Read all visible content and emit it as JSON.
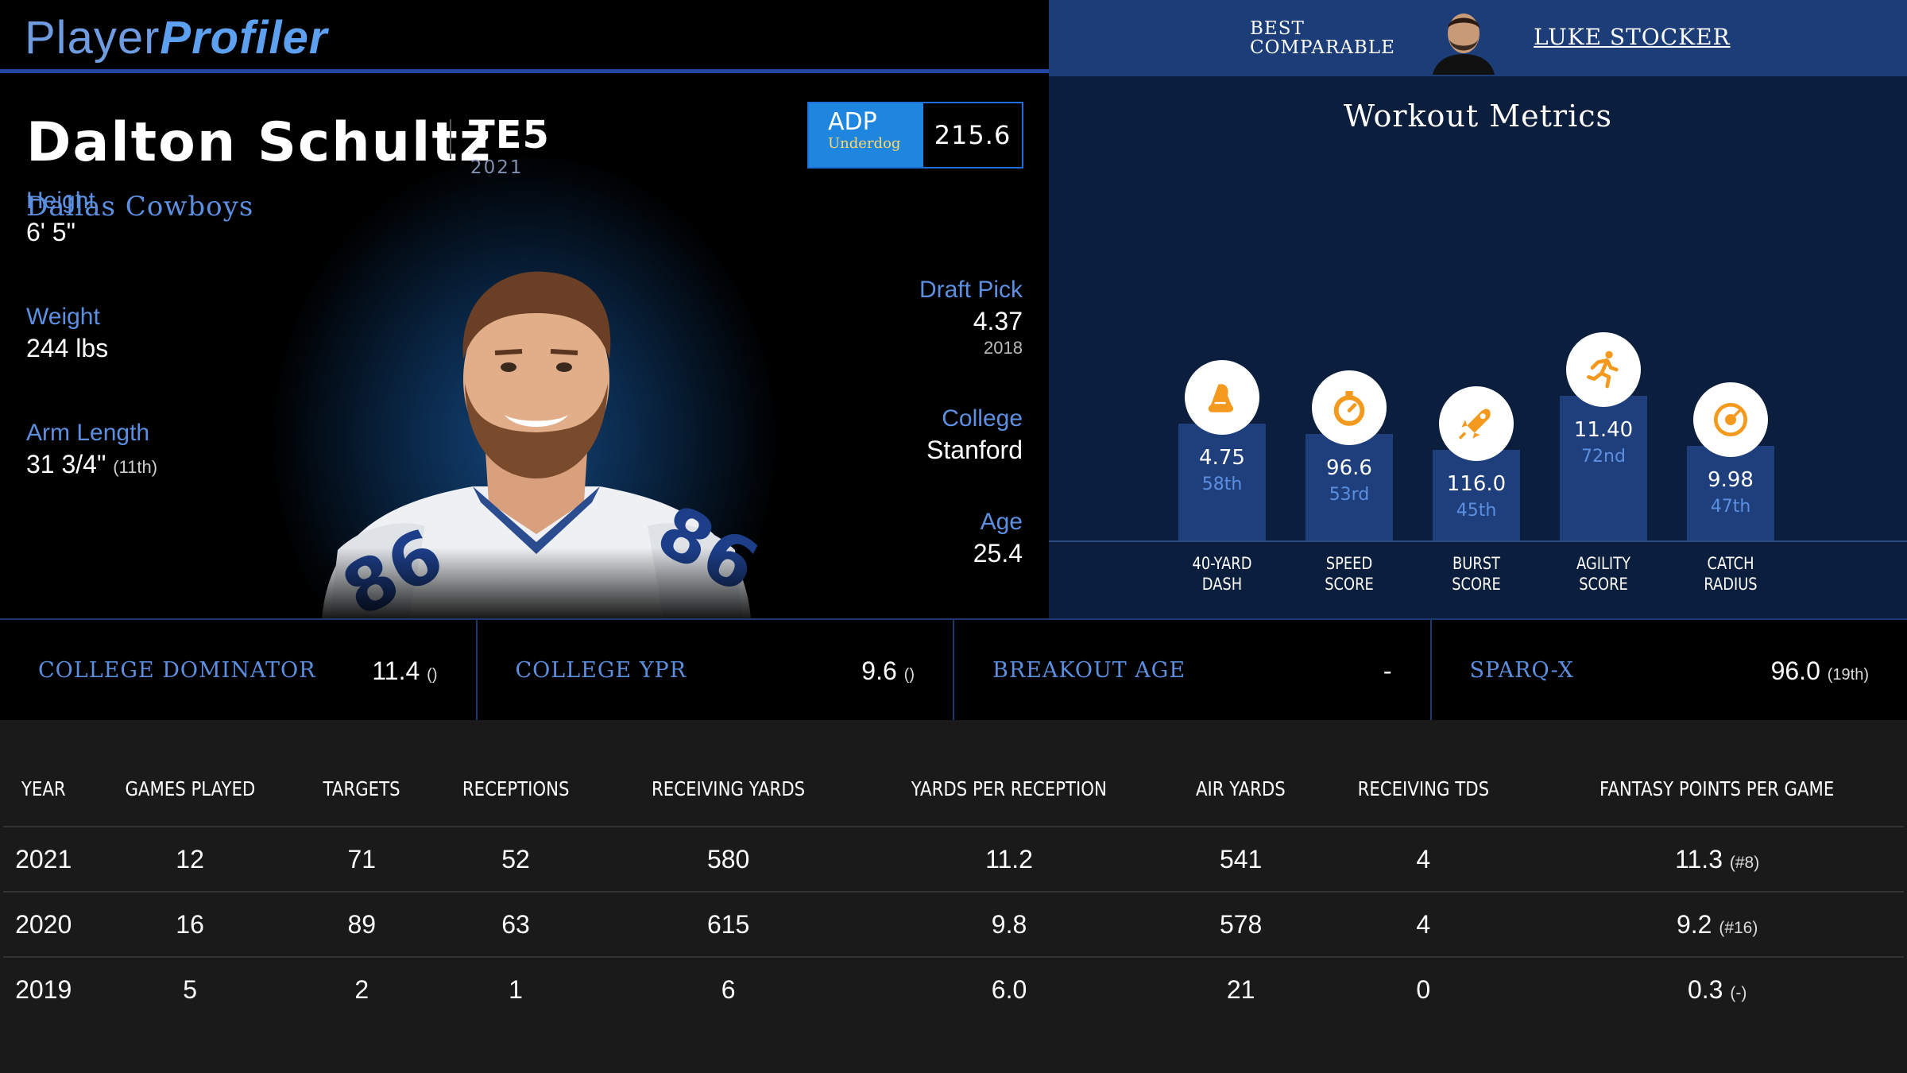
{
  "header": {
    "logo_part1": "Player",
    "logo_part2": "Profiler"
  },
  "best_comparable": {
    "label_line1": "BEST",
    "label_line2": "COMPARABLE",
    "name": "LUKE STOCKER"
  },
  "player": {
    "name": "Dalton Schultz",
    "position": "TE5",
    "season": "2021",
    "team": "Dallas Cowboys",
    "jersey_number": "86",
    "adp": {
      "label": "ADP",
      "source": "Underdog",
      "value": "215.6"
    },
    "height": {
      "label": "Height",
      "value": "6' 5\""
    },
    "weight": {
      "label": "Weight",
      "value": "244 lbs"
    },
    "arm_length": {
      "label": "Arm Length",
      "value": "31 3/4\"",
      "rank": "(11th)"
    },
    "draft_pick": {
      "label": "Draft Pick",
      "value": "4.37",
      "year": "2018"
    },
    "college": {
      "label": "College",
      "value": "Stanford"
    },
    "age": {
      "label": "Age",
      "value": "25.4"
    }
  },
  "workout": {
    "title": "Workout Metrics",
    "metrics": [
      {
        "icon": "shoe-icon",
        "value": "4.75",
        "rank": "58th",
        "percentile": 58,
        "label1": "40-YARD",
        "label2": "DASH"
      },
      {
        "icon": "stopwatch-icon",
        "value": "96.6",
        "rank": "53rd",
        "percentile": 53,
        "label1": "SPEED",
        "label2": "SCORE"
      },
      {
        "icon": "rocket-icon",
        "value": "116.0",
        "rank": "45th",
        "percentile": 45,
        "label1": "BURST",
        "label2": "SCORE"
      },
      {
        "icon": "runner-icon",
        "value": "11.40",
        "rank": "72nd",
        "percentile": 72,
        "label1": "AGILITY",
        "label2": "SCORE"
      },
      {
        "icon": "target-icon",
        "value": "9.98",
        "rank": "47th",
        "percentile": 47,
        "label1": "CATCH",
        "label2": "RADIUS"
      }
    ]
  },
  "college_stats": [
    {
      "label": "COLLEGE DOMINATOR",
      "value": "11.4",
      "rank": "()"
    },
    {
      "label": "COLLEGE YPR",
      "value": "9.6",
      "rank": "()"
    },
    {
      "label": "BREAKOUT AGE",
      "value": "-",
      "rank": ""
    },
    {
      "label": "SPARQ-X",
      "value": "96.0",
      "rank": "(19th)"
    }
  ],
  "season_table": {
    "headers": [
      "YEAR",
      "GAMES PLAYED",
      "TARGETS",
      "RECEPTIONS",
      "RECEIVING YARDS",
      "YARDS PER RECEPTION",
      "AIR YARDS",
      "RECEIVING TDS",
      "FANTASY POINTS PER GAME"
    ],
    "rows": [
      {
        "cells": [
          "2021",
          "12",
          "71",
          "52",
          "580",
          "11.2",
          "541",
          "4",
          "11.3"
        ],
        "fp_rank": "(#8)"
      },
      {
        "cells": [
          "2020",
          "16",
          "89",
          "63",
          "615",
          "9.8",
          "578",
          "4",
          "9.2"
        ],
        "fp_rank": "(#16)"
      },
      {
        "cells": [
          "2019",
          "5",
          "2",
          "1",
          "6",
          "6.0",
          "21",
          "0",
          "0.3"
        ],
        "fp_rank": "(-)"
      }
    ]
  },
  "colors": {
    "accent_blue": "#5c8fe0",
    "bar_blue": "#1e3f7c",
    "icon_orange": "#f39a1e",
    "adp_blue": "#1f86e0"
  }
}
